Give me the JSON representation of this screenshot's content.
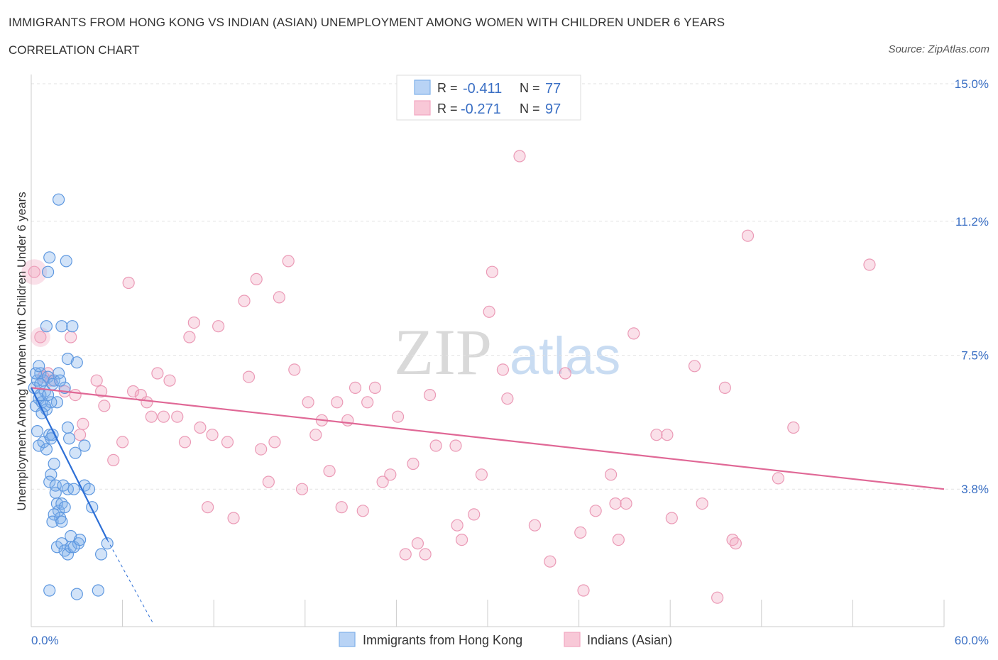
{
  "title": "IMMIGRANTS FROM HONG KONG VS INDIAN (ASIAN) UNEMPLOYMENT AMONG WOMEN WITH CHILDREN UNDER 6 YEARS",
  "subtitle": "CORRELATION CHART",
  "source": "Source: ZipAtlas.com",
  "watermark": {
    "zip": "ZIP",
    "atlas": "atlas"
  },
  "colors": {
    "blue": "#7fb0ea",
    "blue_line": "#2d6fd6",
    "pink": "#f2a7c0",
    "pink_line": "#e06896",
    "axis_text": "#3a6fc4"
  },
  "chart_data": {
    "type": "scatter",
    "xlabel": "",
    "ylabel": "Unemployment Among Women with Children Under 6 years",
    "xlim": [
      0,
      60
    ],
    "ylim": [
      0,
      15
    ],
    "x_tick_labels": [
      "0.0%",
      "60.0%"
    ],
    "y_ticks": [
      3.8,
      7.5,
      11.2,
      15.0
    ],
    "y_tick_labels": [
      "3.8%",
      "7.5%",
      "11.2%",
      "15.0%"
    ],
    "legend": {
      "rows": [
        {
          "r_label": "R =",
          "r_value": "-0.411",
          "n_label": "N =",
          "n_value": "77"
        },
        {
          "r_label": "R =",
          "r_value": "-0.271",
          "n_label": "N =",
          "n_value": "97"
        }
      ]
    },
    "series": [
      {
        "name": "Immigrants from Hong Kong",
        "color": "#7fb0ea",
        "trend": {
          "x": [
            0,
            5.0
          ],
          "y": [
            6.6,
            2.4
          ]
        },
        "trend_dashed": {
          "x": [
            5.0,
            8.0
          ],
          "y": [
            2.4,
            0.1
          ]
        },
        "points": [
          [
            0.2,
            6.6
          ],
          [
            0.3,
            6.1
          ],
          [
            0.4,
            6.8
          ],
          [
            0.5,
            6.3
          ],
          [
            0.6,
            7.0
          ],
          [
            0.7,
            6.2
          ],
          [
            0.8,
            6.8
          ],
          [
            0.9,
            6.5
          ],
          [
            1.0,
            6.0
          ],
          [
            1.1,
            6.9
          ],
          [
            0.3,
            7.0
          ],
          [
            0.5,
            7.2
          ],
          [
            0.6,
            6.7
          ],
          [
            0.4,
            5.4
          ],
          [
            0.5,
            5.0
          ],
          [
            0.8,
            5.1
          ],
          [
            1.0,
            4.9
          ],
          [
            1.2,
            5.3
          ],
          [
            1.4,
            5.3
          ],
          [
            1.5,
            4.5
          ],
          [
            1.3,
            4.2
          ],
          [
            1.6,
            3.7
          ],
          [
            1.7,
            3.4
          ],
          [
            1.8,
            3.2
          ],
          [
            1.9,
            3.0
          ],
          [
            2.0,
            3.4
          ],
          [
            2.2,
            3.3
          ],
          [
            2.4,
            3.8
          ],
          [
            2.6,
            2.5
          ],
          [
            2.8,
            3.8
          ],
          [
            1.5,
            3.1
          ],
          [
            1.7,
            2.2
          ],
          [
            2.0,
            2.3
          ],
          [
            2.2,
            2.1
          ],
          [
            2.4,
            2.0
          ],
          [
            2.6,
            2.2
          ],
          [
            3.1,
            2.3
          ],
          [
            3.5,
            3.9
          ],
          [
            3.8,
            3.8
          ],
          [
            4.0,
            3.3
          ],
          [
            1.2,
            10.2
          ],
          [
            1.8,
            11.8
          ],
          [
            1.1,
            9.8
          ],
          [
            2.3,
            10.1
          ],
          [
            1.0,
            8.3
          ],
          [
            2.0,
            8.3
          ],
          [
            2.7,
            8.3
          ],
          [
            2.4,
            7.4
          ],
          [
            3.0,
            7.3
          ],
          [
            1.8,
            7.0
          ],
          [
            1.5,
            6.8
          ],
          [
            2.2,
            6.6
          ],
          [
            1.7,
            6.2
          ],
          [
            1.3,
            6.2
          ],
          [
            2.4,
            5.5
          ],
          [
            2.5,
            5.2
          ],
          [
            3.5,
            5.0
          ],
          [
            2.9,
            4.8
          ],
          [
            1.2,
            4.0
          ],
          [
            1.6,
            3.9
          ],
          [
            2.8,
            2.2
          ],
          [
            3.0,
            0.9
          ],
          [
            4.4,
            1.0
          ],
          [
            4.6,
            2.0
          ],
          [
            5.0,
            2.3
          ],
          [
            1.2,
            1.0
          ],
          [
            0.9,
            6.1
          ],
          [
            0.7,
            5.9
          ],
          [
            1.4,
            6.7
          ],
          [
            1.9,
            6.8
          ],
          [
            0.6,
            6.4
          ],
          [
            1.1,
            6.4
          ],
          [
            1.3,
            5.2
          ],
          [
            2.1,
            3.9
          ],
          [
            1.4,
            2.9
          ],
          [
            2.0,
            2.9
          ],
          [
            3.2,
            2.4
          ]
        ]
      },
      {
        "name": "Indians (Asian)",
        "color": "#f2a7c0",
        "trend": {
          "x": [
            0,
            60
          ],
          "y": [
            6.6,
            3.8
          ]
        },
        "points": [
          [
            0.2,
            9.8
          ],
          [
            0.6,
            8.0
          ],
          [
            1.1,
            7.0
          ],
          [
            1.3,
            6.8
          ],
          [
            2.2,
            6.5
          ],
          [
            2.6,
            8.0
          ],
          [
            2.9,
            6.4
          ],
          [
            3.4,
            5.6
          ],
          [
            3.2,
            5.3
          ],
          [
            4.3,
            6.8
          ],
          [
            4.6,
            6.5
          ],
          [
            4.8,
            6.1
          ],
          [
            5.4,
            4.6
          ],
          [
            6.0,
            5.1
          ],
          [
            6.4,
            9.5
          ],
          [
            6.7,
            6.5
          ],
          [
            7.2,
            6.4
          ],
          [
            7.6,
            6.2
          ],
          [
            7.9,
            5.8
          ],
          [
            8.3,
            7.0
          ],
          [
            8.7,
            5.8
          ],
          [
            9.1,
            6.8
          ],
          [
            9.6,
            5.8
          ],
          [
            10.1,
            5.1
          ],
          [
            10.4,
            8.0
          ],
          [
            10.7,
            8.4
          ],
          [
            11.1,
            5.5
          ],
          [
            11.6,
            3.3
          ],
          [
            11.9,
            5.3
          ],
          [
            12.3,
            8.3
          ],
          [
            12.9,
            5.1
          ],
          [
            13.3,
            3.0
          ],
          [
            14.0,
            9.0
          ],
          [
            14.3,
            6.9
          ],
          [
            14.8,
            9.6
          ],
          [
            15.1,
            4.9
          ],
          [
            15.6,
            4.0
          ],
          [
            16.0,
            5.1
          ],
          [
            16.3,
            9.1
          ],
          [
            16.9,
            10.1
          ],
          [
            17.3,
            7.1
          ],
          [
            17.8,
            3.8
          ],
          [
            18.2,
            6.2
          ],
          [
            18.7,
            5.3
          ],
          [
            19.1,
            5.7
          ],
          [
            19.6,
            4.3
          ],
          [
            20.1,
            6.2
          ],
          [
            20.4,
            3.3
          ],
          [
            20.8,
            5.7
          ],
          [
            21.3,
            6.6
          ],
          [
            21.8,
            3.2
          ],
          [
            22.1,
            6.2
          ],
          [
            22.6,
            6.6
          ],
          [
            23.1,
            4.0
          ],
          [
            23.6,
            4.2
          ],
          [
            24.1,
            5.8
          ],
          [
            24.6,
            2.0
          ],
          [
            25.1,
            4.5
          ],
          [
            25.4,
            2.3
          ],
          [
            25.9,
            2.0
          ],
          [
            26.2,
            6.4
          ],
          [
            26.6,
            5.0
          ],
          [
            27.9,
            5.0
          ],
          [
            28.0,
            2.8
          ],
          [
            28.3,
            2.4
          ],
          [
            29.1,
            3.1
          ],
          [
            29.6,
            4.2
          ],
          [
            30.3,
            9.8
          ],
          [
            30.1,
            8.7
          ],
          [
            31.3,
            6.3
          ],
          [
            32.1,
            13.0
          ],
          [
            31.0,
            7.1
          ],
          [
            33.1,
            2.8
          ],
          [
            34.1,
            1.8
          ],
          [
            35.1,
            7.0
          ],
          [
            36.1,
            2.6
          ],
          [
            36.3,
            1.0
          ],
          [
            37.1,
            3.2
          ],
          [
            38.1,
            4.2
          ],
          [
            38.6,
            2.4
          ],
          [
            38.4,
            3.4
          ],
          [
            39.1,
            3.4
          ],
          [
            39.6,
            8.1
          ],
          [
            41.1,
            5.3
          ],
          [
            41.8,
            5.3
          ],
          [
            42.1,
            3.0
          ],
          [
            43.6,
            7.2
          ],
          [
            44.1,
            3.4
          ],
          [
            45.1,
            0.8
          ],
          [
            45.6,
            6.6
          ],
          [
            46.1,
            2.4
          ],
          [
            46.3,
            2.3
          ],
          [
            47.1,
            10.8
          ],
          [
            49.1,
            4.1
          ],
          [
            50.1,
            5.5
          ],
          [
            55.1,
            10.0
          ],
          [
            0.8,
            6.9
          ]
        ]
      }
    ]
  },
  "bottom_legend": [
    "Immigrants from Hong Kong",
    "Indians (Asian)"
  ]
}
